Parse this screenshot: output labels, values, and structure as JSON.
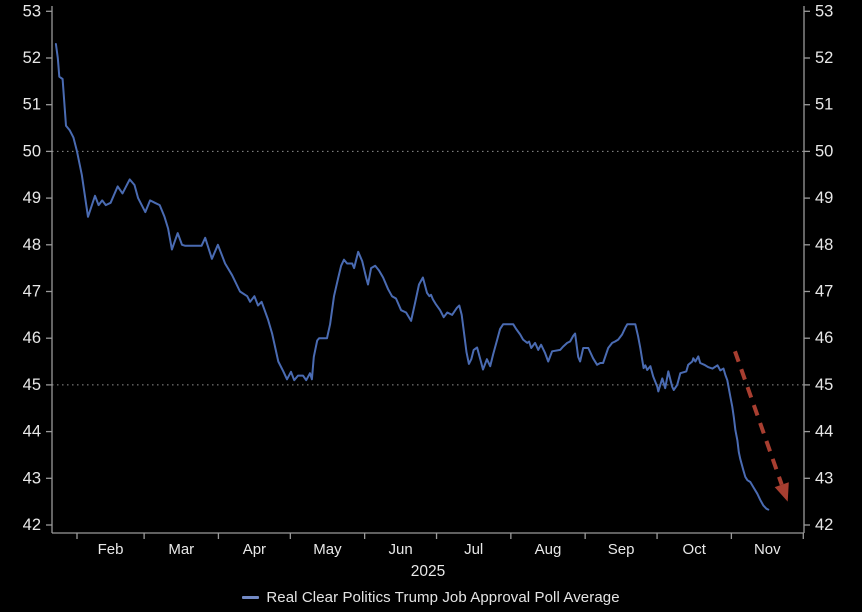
{
  "chart_data": {
    "type": "line",
    "title": "",
    "xlabel": "2025",
    "ylabel": "",
    "x_axis": {
      "domain_days": [
        21.57,
        335.3
      ],
      "year_label": "2025",
      "month_start_days": [
        32,
        60,
        91,
        121,
        152,
        182,
        213,
        244,
        274,
        305,
        335
      ],
      "month_labels": [
        "Feb",
        "Mar",
        "Apr",
        "May",
        "Jun",
        "Jul",
        "Aug",
        "Sep",
        "Oct",
        "Nov"
      ]
    },
    "y_axis": {
      "min": 42,
      "max": 53,
      "ticks": [
        42,
        43,
        44,
        45,
        46,
        47,
        48,
        49,
        50,
        51,
        52,
        53
      ],
      "dotted_gridlines": [
        45,
        50
      ],
      "mirrored_right": true
    },
    "series": [
      {
        "name": "Real Clear Politics Trump Job Approval Poll Average",
        "color": "#4a6bb2",
        "points": [
          [
            23.2,
            52.3
          ],
          [
            24.0,
            52.0
          ],
          [
            24.6,
            51.6
          ],
          [
            26.0,
            51.55
          ],
          [
            27.4,
            50.55
          ],
          [
            29.0,
            50.45
          ],
          [
            30.5,
            50.3
          ],
          [
            32.0,
            50.0
          ],
          [
            34.0,
            49.5
          ],
          [
            36.6,
            48.6
          ],
          [
            39.5,
            49.05
          ],
          [
            41.0,
            48.85
          ],
          [
            42.5,
            48.95
          ],
          [
            44.0,
            48.85
          ],
          [
            46.0,
            48.9
          ],
          [
            49.0,
            49.25
          ],
          [
            51.0,
            49.1
          ],
          [
            54.0,
            49.4
          ],
          [
            56.0,
            49.28
          ],
          [
            57.5,
            49.0
          ],
          [
            60.5,
            48.7
          ],
          [
            62.5,
            48.95
          ],
          [
            64.5,
            48.9
          ],
          [
            66.5,
            48.85
          ],
          [
            68.5,
            48.6
          ],
          [
            70.0,
            48.35
          ],
          [
            71.6,
            47.9
          ],
          [
            74.0,
            48.25
          ],
          [
            75.8,
            48.0
          ],
          [
            77.0,
            47.98
          ],
          [
            84.0,
            47.98
          ],
          [
            85.5,
            48.15
          ],
          [
            88.3,
            47.7
          ],
          [
            90.8,
            48.0
          ],
          [
            93.8,
            47.6
          ],
          [
            96.7,
            47.35
          ],
          [
            100.0,
            47.0
          ],
          [
            103.0,
            46.9
          ],
          [
            104.2,
            46.78
          ],
          [
            106.0,
            46.9
          ],
          [
            107.5,
            46.7
          ],
          [
            109.0,
            46.78
          ],
          [
            111.7,
            46.4
          ],
          [
            113.4,
            46.1
          ],
          [
            116.0,
            45.5
          ],
          [
            118.0,
            45.3
          ],
          [
            119.6,
            45.12
          ],
          [
            121.3,
            45.28
          ],
          [
            122.6,
            45.1
          ],
          [
            124.2,
            45.2
          ],
          [
            126.3,
            45.2
          ],
          [
            127.6,
            45.1
          ],
          [
            129.2,
            45.25
          ],
          [
            130.0,
            45.12
          ],
          [
            130.8,
            45.6
          ],
          [
            132.2,
            45.95
          ],
          [
            133.0,
            46.0
          ],
          [
            136.3,
            46.0
          ],
          [
            137.6,
            46.3
          ],
          [
            139.2,
            46.9
          ],
          [
            141.0,
            47.3
          ],
          [
            142.2,
            47.55
          ],
          [
            143.4,
            47.68
          ],
          [
            144.7,
            47.6
          ],
          [
            146.8,
            47.6
          ],
          [
            147.6,
            47.5
          ],
          [
            149.3,
            47.85
          ],
          [
            151.0,
            47.65
          ],
          [
            152.6,
            47.3
          ],
          [
            153.4,
            47.15
          ],
          [
            154.7,
            47.5
          ],
          [
            156.4,
            47.55
          ],
          [
            158.0,
            47.45
          ],
          [
            159.7,
            47.3
          ],
          [
            161.8,
            47.05
          ],
          [
            163.4,
            46.9
          ],
          [
            165.1,
            46.85
          ],
          [
            167.2,
            46.6
          ],
          [
            169.3,
            46.55
          ],
          [
            171.4,
            46.37
          ],
          [
            173.0,
            46.75
          ],
          [
            174.7,
            47.15
          ],
          [
            176.3,
            47.3
          ],
          [
            178.0,
            46.97
          ],
          [
            179.0,
            46.9
          ],
          [
            179.7,
            46.93
          ],
          [
            180.5,
            46.83
          ],
          [
            181.8,
            46.72
          ],
          [
            183.5,
            46.6
          ],
          [
            185.0,
            46.45
          ],
          [
            186.5,
            46.55
          ],
          [
            188.5,
            46.5
          ],
          [
            190.5,
            46.65
          ],
          [
            191.5,
            46.7
          ],
          [
            192.5,
            46.5
          ],
          [
            193.5,
            46.1
          ],
          [
            194.5,
            45.7
          ],
          [
            195.5,
            45.45
          ],
          [
            196.5,
            45.55
          ],
          [
            197.5,
            45.75
          ],
          [
            198.9,
            45.8
          ],
          [
            200.5,
            45.5
          ],
          [
            201.4,
            45.33
          ],
          [
            203.0,
            45.55
          ],
          [
            204.4,
            45.4
          ],
          [
            205.6,
            45.65
          ],
          [
            207.3,
            45.97
          ],
          [
            208.5,
            46.2
          ],
          [
            209.8,
            46.3
          ],
          [
            214.0,
            46.3
          ],
          [
            215.2,
            46.2
          ],
          [
            216.9,
            46.08
          ],
          [
            218.1,
            45.97
          ],
          [
            219.8,
            45.9
          ],
          [
            220.6,
            45.93
          ],
          [
            221.5,
            45.79
          ],
          [
            223.1,
            45.9
          ],
          [
            224.4,
            45.75
          ],
          [
            225.6,
            45.86
          ],
          [
            227.3,
            45.68
          ],
          [
            228.6,
            45.5
          ],
          [
            230.2,
            45.72
          ],
          [
            233.6,
            45.75
          ],
          [
            234.8,
            45.82
          ],
          [
            236.5,
            45.9
          ],
          [
            237.7,
            45.93
          ],
          [
            239.0,
            46.05
          ],
          [
            239.8,
            46.1
          ],
          [
            241.1,
            45.6
          ],
          [
            241.9,
            45.5
          ],
          [
            243.2,
            45.79
          ],
          [
            245.3,
            45.79
          ],
          [
            247.3,
            45.57
          ],
          [
            249.0,
            45.43
          ],
          [
            250.3,
            45.47
          ],
          [
            251.5,
            45.47
          ],
          [
            253.6,
            45.79
          ],
          [
            255.3,
            45.9
          ],
          [
            256.5,
            45.93
          ],
          [
            257.8,
            45.97
          ],
          [
            259.4,
            46.08
          ],
          [
            260.7,
            46.22
          ],
          [
            261.6,
            46.3
          ],
          [
            264.9,
            46.3
          ],
          [
            266.1,
            46.04
          ],
          [
            267.0,
            45.79
          ],
          [
            267.8,
            45.54
          ],
          [
            268.4,
            45.36
          ],
          [
            269.1,
            45.42
          ],
          [
            269.9,
            45.32
          ],
          [
            271.2,
            45.4
          ],
          [
            272.4,
            45.18
          ],
          [
            274.1,
            44.96
          ],
          [
            274.5,
            44.86
          ],
          [
            276.2,
            45.14
          ],
          [
            277.4,
            44.93
          ],
          [
            278.7,
            45.29
          ],
          [
            280.3,
            44.96
          ],
          [
            281.0,
            44.89
          ],
          [
            282.4,
            45.0
          ],
          [
            283.7,
            45.25
          ],
          [
            286.2,
            45.29
          ],
          [
            287.0,
            45.43
          ],
          [
            288.7,
            45.5
          ],
          [
            289.1,
            45.57
          ],
          [
            290.0,
            45.5
          ],
          [
            291.2,
            45.61
          ],
          [
            292.0,
            45.47
          ],
          [
            293.7,
            45.43
          ],
          [
            295.4,
            45.38
          ],
          [
            297.1,
            45.35
          ],
          [
            299.2,
            45.42
          ],
          [
            300.4,
            45.31
          ],
          [
            301.7,
            45.35
          ],
          [
            302.5,
            45.21
          ],
          [
            303.3,
            45.1
          ],
          [
            304.6,
            44.74
          ],
          [
            305.4,
            44.53
          ],
          [
            306.0,
            44.31
          ],
          [
            306.7,
            44.03
          ],
          [
            307.5,
            43.81
          ],
          [
            308.1,
            43.56
          ],
          [
            308.7,
            43.42
          ],
          [
            310.0,
            43.17
          ],
          [
            310.8,
            43.03
          ],
          [
            311.7,
            42.96
          ],
          [
            312.9,
            42.92
          ],
          [
            314.2,
            42.81
          ],
          [
            315.8,
            42.67
          ],
          [
            317.1,
            42.53
          ],
          [
            318.3,
            42.42
          ],
          [
            319.6,
            42.35
          ],
          [
            320.4,
            42.33
          ]
        ]
      }
    ],
    "annotation_arrow": {
      "description": "dashed red arrow marking the late-October / November plunge",
      "color": "#a83e30",
      "from_day_value": [
        306.5,
        45.72
      ],
      "to_day_value": [
        328.5,
        42.5
      ]
    },
    "legend_position": "bottom-center",
    "grid": "dotted horizontal at 45 and 50 only",
    "background": "#000000"
  },
  "legend": {
    "label": "Real Clear Politics Trump Job Approval Poll Average",
    "marker_color": "#7289c4"
  },
  "colors": {
    "background": "#000000",
    "axis": "#9a9a9a",
    "tick_text": "#e8e8e8",
    "gridline": "#8f8f8f",
    "line": "#4a6bb2",
    "arrow": "#a83e30"
  }
}
